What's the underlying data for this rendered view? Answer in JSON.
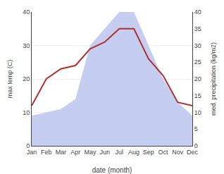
{
  "chart_data": {
    "type": "line",
    "categories": [
      "Jan",
      "Feb",
      "Mar",
      "Apr",
      "May",
      "Jun",
      "Jul",
      "Aug",
      "Sep",
      "Oct",
      "Nov",
      "Dec"
    ],
    "xlabel": "date (month)",
    "ylabel": "max temp (C)",
    "y2label": "med. precipitation (kg/m2)",
    "ylim": [
      0,
      40
    ],
    "yticks": [
      0,
      10,
      20,
      30,
      40
    ],
    "y2lim": [
      0,
      40
    ],
    "y2ticks": [
      0,
      5,
      10,
      15,
      20,
      25,
      30,
      35,
      40
    ],
    "grid": true,
    "series": [
      {
        "type": "area",
        "axis": "y2",
        "color": "#c5cef0",
        "values": [
          9,
          10,
          11,
          14,
          30,
          35,
          40,
          40,
          30,
          20,
          13,
          9
        ]
      },
      {
        "type": "line",
        "color": "#b03030",
        "values": [
          12,
          20,
          23,
          24,
          29,
          31,
          35,
          35,
          26,
          21,
          13,
          12
        ]
      }
    ]
  }
}
